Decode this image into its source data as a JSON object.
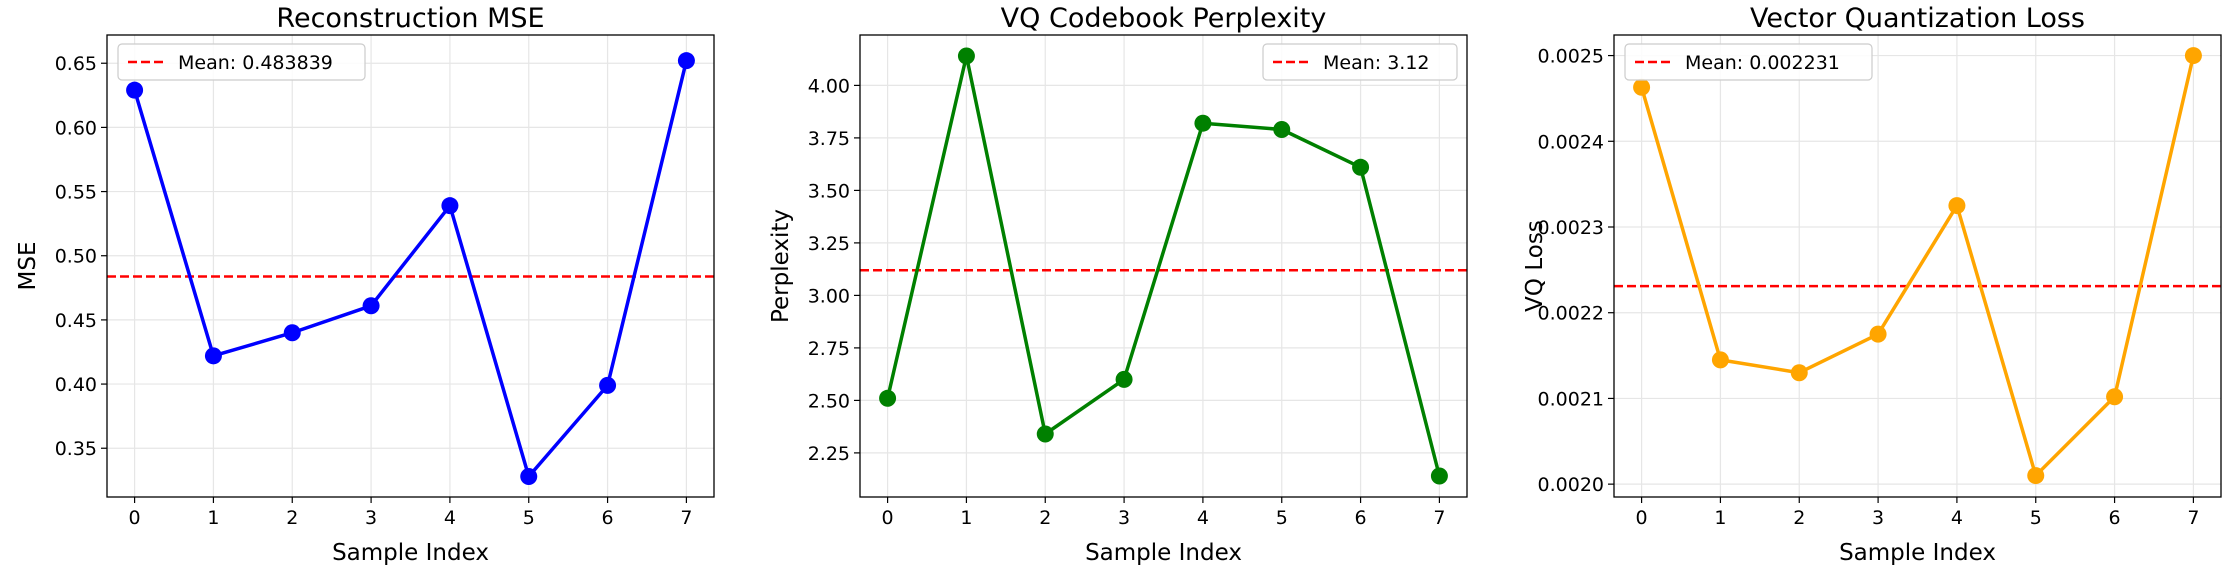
{
  "chart_data": [
    {
      "type": "line",
      "title": "Reconstruction MSE",
      "xlabel": "Sample Index",
      "ylabel": "MSE",
      "x": [
        0,
        1,
        2,
        3,
        4,
        5,
        6,
        7
      ],
      "xticks": [
        "0",
        "1",
        "2",
        "3",
        "4",
        "5",
        "6",
        "7"
      ],
      "xlim": [
        -0.35,
        7.35
      ],
      "ylim": [
        0.312,
        0.672
      ],
      "yticks": [
        "0.35",
        "0.40",
        "0.45",
        "0.50",
        "0.55",
        "0.60",
        "0.65"
      ],
      "ytick_values": [
        0.35,
        0.4,
        0.45,
        0.5,
        0.55,
        0.6,
        0.65
      ],
      "series": [
        {
          "values": [
            0.629,
            0.422,
            0.44,
            0.461,
            0.539,
            0.328,
            0.399,
            0.652
          ],
          "color": "#0000ff"
        }
      ],
      "mean": {
        "value": 0.483839,
        "label": "Mean: 0.483839",
        "color": "#ff0000"
      },
      "legend_position": "top-left",
      "grid": true
    },
    {
      "type": "line",
      "title": "VQ Codebook Perplexity",
      "xlabel": "Sample Index",
      "ylabel": "Perplexity",
      "x": [
        0,
        1,
        2,
        3,
        4,
        5,
        6,
        7
      ],
      "xticks": [
        "0",
        "1",
        "2",
        "3",
        "4",
        "5",
        "6",
        "7"
      ],
      "xlim": [
        -0.35,
        7.35
      ],
      "ylim": [
        2.04,
        4.24
      ],
      "yticks": [
        "2.25",
        "2.50",
        "2.75",
        "3.00",
        "3.25",
        "3.50",
        "3.75",
        "4.00"
      ],
      "ytick_values": [
        2.25,
        2.5,
        2.75,
        3.0,
        3.25,
        3.5,
        3.75,
        4.0
      ],
      "series": [
        {
          "values": [
            2.51,
            4.14,
            2.34,
            2.6,
            3.82,
            3.79,
            3.61,
            2.14
          ],
          "color": "#008000"
        }
      ],
      "mean": {
        "value": 3.12,
        "label": "Mean: 3.12",
        "color": "#ff0000"
      },
      "legend_position": "top-right",
      "grid": true
    },
    {
      "type": "line",
      "title": "Vector Quantization Loss",
      "xlabel": "Sample Index",
      "ylabel": "VQ Loss",
      "x": [
        0,
        1,
        2,
        3,
        4,
        5,
        6,
        7
      ],
      "xticks": [
        "0",
        "1",
        "2",
        "3",
        "4",
        "5",
        "6",
        "7"
      ],
      "xlim": [
        -0.35,
        7.35
      ],
      "ylim": [
        0.001985,
        0.002524
      ],
      "yticks": [
        "0.0020",
        "0.0021",
        "0.0022",
        "0.0023",
        "0.0024",
        "0.0025"
      ],
      "ytick_values": [
        0.002,
        0.0021,
        0.0022,
        0.0023,
        0.0024,
        0.0025
      ],
      "series": [
        {
          "values": [
            0.002463,
            0.002145,
            0.00213,
            0.002175,
            0.002325,
            0.00201,
            0.002102,
            0.0025
          ],
          "color": "#ffa500"
        }
      ],
      "mean": {
        "value": 0.002231,
        "label": "Mean: 0.002231",
        "color": "#ff0000"
      },
      "legend_position": "top-left",
      "grid": true
    }
  ]
}
